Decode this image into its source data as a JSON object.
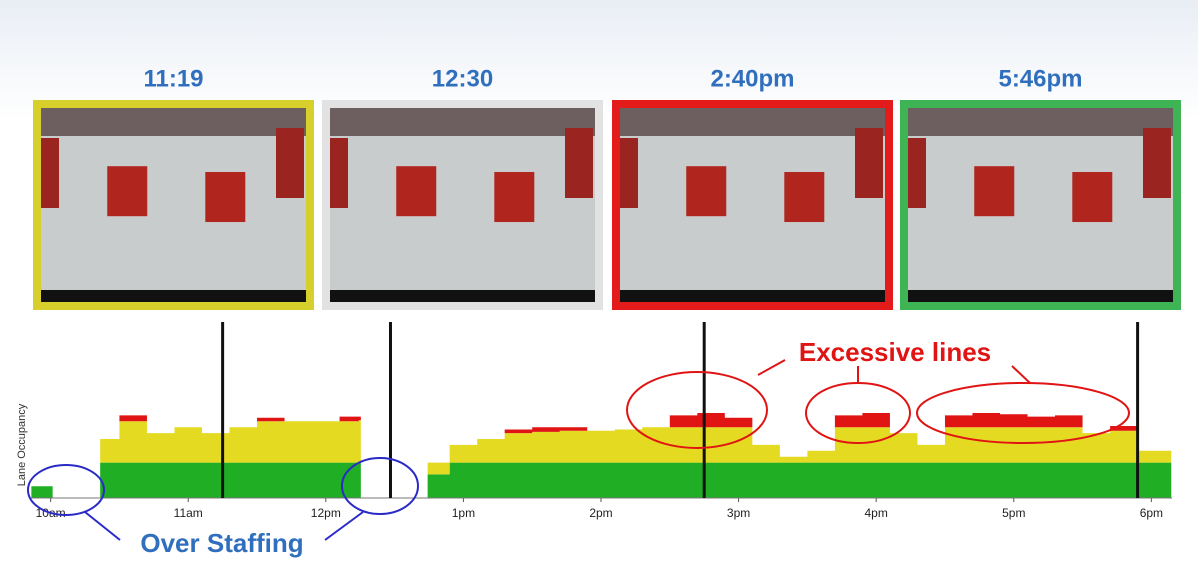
{
  "cameras": [
    {
      "time": "11:19",
      "border": "#d6cf2c"
    },
    {
      "time": "12:30",
      "border": "#e2e2e2"
    },
    {
      "time": "2:40pm",
      "border": "#e31b1b"
    },
    {
      "time": "5:46pm",
      "border": "#3fb455"
    }
  ],
  "chart_data": {
    "type": "area",
    "y_label": "Lane Occupancy",
    "x": [
      9.86,
      10.0,
      10.2,
      10.36,
      10.5,
      10.7,
      10.9,
      11.1,
      11.3,
      11.5,
      11.7,
      11.9,
      12.1,
      12.24,
      12.4,
      12.74,
      12.9,
      13.1,
      13.3,
      13.5,
      13.7,
      13.9,
      14.1,
      14.3,
      14.5,
      14.7,
      14.9,
      15.1,
      15.3,
      15.5,
      15.7,
      15.9,
      16.1,
      16.3,
      16.5,
      16.7,
      16.9,
      17.1,
      17.3,
      17.5,
      17.7,
      17.9,
      18.13
    ],
    "series": [
      {
        "color": "#1fae24",
        "values": [
          1,
          1,
          null,
          3,
          3,
          3,
          3,
          3,
          3,
          3,
          3,
          3,
          3,
          3,
          null,
          2,
          3,
          3,
          3,
          3,
          3,
          3,
          3,
          3,
          3,
          3,
          3,
          3,
          3,
          3,
          3,
          3,
          3,
          3,
          3,
          3,
          3,
          3,
          3,
          3,
          3,
          3,
          3
        ]
      },
      {
        "color": "#e5da22",
        "values": [
          0,
          0,
          null,
          2,
          3.5,
          2.5,
          3,
          2.5,
          3,
          3.5,
          3.5,
          3.5,
          3.5,
          3.6,
          null,
          1,
          1.5,
          2,
          2.5,
          2.6,
          2.7,
          2.7,
          2.8,
          3,
          3,
          3,
          3,
          1.5,
          0.5,
          1,
          3,
          3,
          2.5,
          1.5,
          3,
          3,
          3,
          3,
          3,
          2.5,
          2.7,
          1,
          1
        ]
      },
      {
        "color": "#e11414",
        "values": [
          0,
          0,
          null,
          0,
          0.5,
          0,
          0,
          0,
          0,
          0.3,
          0,
          0,
          0.4,
          0.3,
          null,
          0,
          0,
          0,
          0.3,
          0.4,
          0.3,
          0,
          0,
          0,
          1,
          1.2,
          0.8,
          0,
          0,
          0,
          1,
          1.2,
          0,
          0,
          1,
          1.2,
          1.1,
          0.9,
          1,
          0,
          0.4,
          0,
          0
        ]
      }
    ],
    "xlim": [
      9.85,
      18.15
    ],
    "ylim": [
      0,
      10
    ],
    "xticks": [
      {
        "value": 10,
        "label": "10am"
      },
      {
        "value": 11,
        "label": "11am"
      },
      {
        "value": 12,
        "label": "12pm"
      },
      {
        "value": 13,
        "label": "1pm"
      },
      {
        "value": 14,
        "label": "2pm"
      },
      {
        "value": 15,
        "label": "3pm"
      },
      {
        "value": 16,
        "label": "4pm"
      },
      {
        "value": 17,
        "label": "5pm"
      },
      {
        "value": 18,
        "label": "6pm"
      }
    ],
    "markers": [
      11.25,
      12.47,
      14.75,
      17.9
    ],
    "annotations": [
      "Excessive lines",
      "Over Staffing"
    ]
  }
}
